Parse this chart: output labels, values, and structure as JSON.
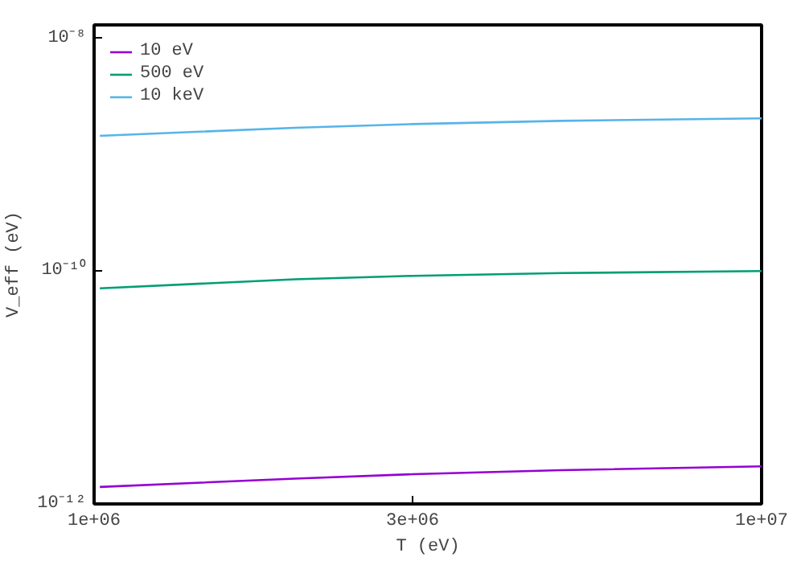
{
  "chart_data": {
    "type": "line",
    "xlabel": "T (eV)",
    "ylabel": "V_eff (eV)",
    "log": "xy",
    "grid": false,
    "legend": "top left",
    "x": [
      1020000,
      2000000,
      3000000,
      5000000,
      10000000
    ],
    "xlim": [
      1000000,
      10000000
    ],
    "xticks": [
      {
        "value": 1000000,
        "label": "1e+06"
      },
      {
        "value": 3000000,
        "label": "3e+06"
      },
      {
        "value": 10000000,
        "label": "1e+07"
      }
    ],
    "ylim": [
      1e-12,
      1.3e-08
    ],
    "yticks": [
      {
        "value": 1e-12,
        "label": "10⁻¹²"
      },
      {
        "value": 1e-10,
        "label": "10⁻¹⁰"
      },
      {
        "value": 1e-08,
        "label": "10⁻⁸"
      }
    ],
    "series": [
      {
        "name": "10 eV",
        "color": "#9400d3",
        "values": [
          1.4e-12,
          1.65e-12,
          1.8e-12,
          1.95e-12,
          2.1e-12
        ]
      },
      {
        "name": "500 eV",
        "color": "#009e73",
        "values": [
          7.1e-11,
          8.5e-11,
          9.1e-11,
          9.6e-11,
          1e-10
        ]
      },
      {
        "name": "10 keV",
        "color": "#56b4e9",
        "values": [
          1.45e-09,
          1.7e-09,
          1.83e-09,
          1.95e-09,
          2.05e-09
        ]
      }
    ]
  }
}
